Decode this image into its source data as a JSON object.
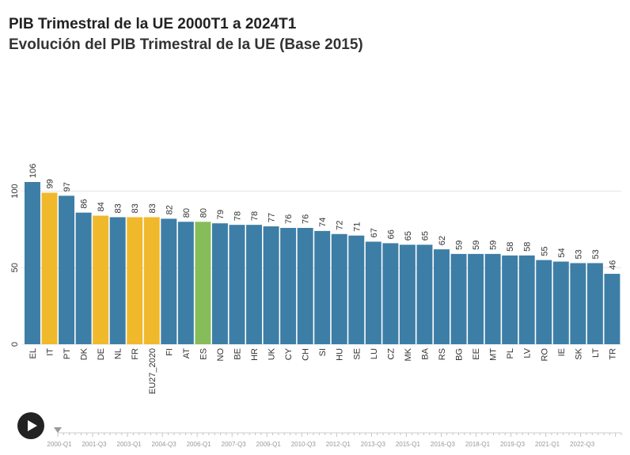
{
  "title": "PIB Trimestral de la UE 2000T1 a 2024T1",
  "subtitle": "Evolución del PIB Trimestral de la UE (Base 2015)",
  "colors": {
    "default": "#3d7ea6",
    "highlight": "#f0b92c",
    "spain": "#86bd5a",
    "grid": "#e3e3e3",
    "text": "#333333",
    "timeline": "#999999"
  },
  "chart_data": {
    "type": "bar",
    "title": "PIB Trimestral de la UE 2000T1 a 2024T1",
    "subtitle": "Evolución del PIB Trimestral de la UE (Base 2015)",
    "xlabel": "",
    "ylabel": "",
    "ylim": [
      0,
      106
    ],
    "yticks": [
      0,
      50,
      100
    ],
    "grid": true,
    "categories": [
      "EL",
      "IT",
      "PT",
      "DK",
      "DE",
      "NL",
      "FR",
      "EU27_2020",
      "FI",
      "AT",
      "ES",
      "NO",
      "BE",
      "HR",
      "UK",
      "CY",
      "CH",
      "SI",
      "HU",
      "SE",
      "LU",
      "CZ",
      "MK",
      "BA",
      "RS",
      "BG",
      "EE",
      "MT",
      "PL",
      "LV",
      "RO",
      "IE",
      "SK",
      "LT",
      "TR"
    ],
    "values": [
      106,
      99,
      97,
      86,
      84,
      83,
      83,
      83,
      82,
      80,
      80,
      79,
      78,
      78,
      77,
      76,
      76,
      74,
      72,
      71,
      67,
      66,
      65,
      65,
      62,
      59,
      59,
      59,
      58,
      58,
      55,
      54,
      53,
      53,
      46
    ],
    "bar_colors": [
      "default",
      "highlight",
      "default",
      "default",
      "highlight",
      "default",
      "highlight",
      "highlight",
      "default",
      "default",
      "spain",
      "default",
      "default",
      "default",
      "default",
      "default",
      "default",
      "default",
      "default",
      "default",
      "default",
      "default",
      "default",
      "default",
      "default",
      "default",
      "default",
      "default",
      "default",
      "default",
      "default",
      "default",
      "default",
      "default",
      "default"
    ]
  },
  "timeline": {
    "labels": [
      "2000-Q1",
      "2001-Q3",
      "2003-Q1",
      "2004-Q3",
      "2006-Q1",
      "2007-Q3",
      "2009-Q1",
      "2010-Q3",
      "2012-Q1",
      "2013-Q3",
      "2015-Q1",
      "2016-Q3",
      "2018-Q1",
      "2019-Q3",
      "2021-Q1",
      "2022-Q3"
    ],
    "current_label": "2000-Q1",
    "play_icon": "play-icon"
  }
}
